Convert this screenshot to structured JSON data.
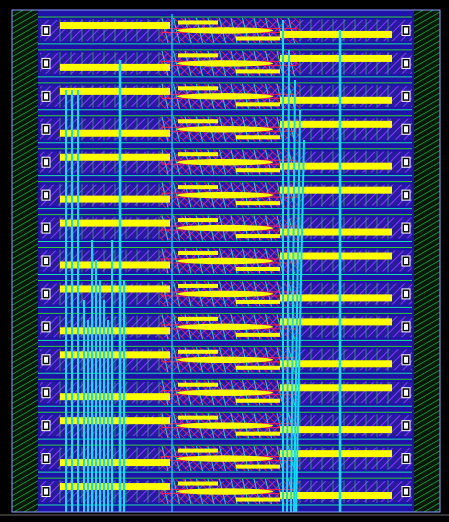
{
  "canvas": {
    "background": "#000000"
  },
  "layers": [
    {
      "name": "nwell-outline",
      "color": "#2ecc40"
    },
    {
      "name": "metal1",
      "color": "#1a1aff"
    },
    {
      "name": "metal2-hatch",
      "color": "#6a2ccf"
    },
    {
      "name": "metal3",
      "color": "#ffff00"
    },
    {
      "name": "poly",
      "color": "#ff1a4a"
    },
    {
      "name": "via-cyan",
      "color": "#00e5ff"
    },
    {
      "name": "guard-ring",
      "color": "#24b34a"
    },
    {
      "name": "contact",
      "color": "#ffffff"
    },
    {
      "name": "cell-boundary",
      "color": "#20d9b0"
    }
  ],
  "grid": {
    "rows": 15,
    "pad_columns": 2
  }
}
